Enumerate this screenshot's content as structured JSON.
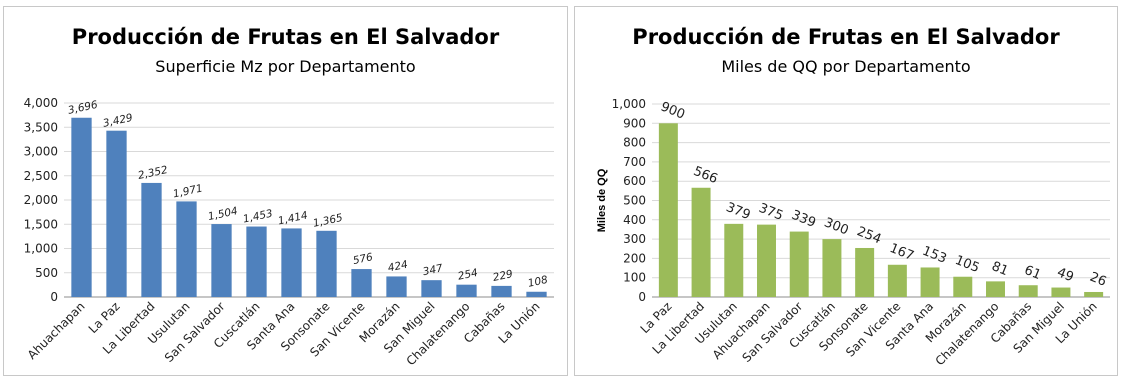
{
  "chart_data": [
    {
      "type": "bar",
      "title": "Producción de Frutas en El Salvador",
      "subtitle": "Superficie Mz por Departamento",
      "xlabel": "",
      "ylabel": "",
      "categories": [
        "Ahuachapan",
        "La Paz",
        "La Libertad",
        "Usulutan",
        "San Salvador",
        "Cuscatlán",
        "Santa Ana",
        "Sonsonate",
        "San Vicente",
        "Morazán",
        "San Miguel",
        "Chalatenango",
        "Cabañas",
        "La Unión"
      ],
      "values": [
        3696,
        3429,
        2352,
        1971,
        1504,
        1453,
        1414,
        1365,
        576,
        424,
        347,
        254,
        229,
        108
      ],
      "value_labels": [
        "3,696",
        "3,429",
        "2,352",
        "1,971",
        "1,504",
        "1,453",
        "1,414",
        "1,365",
        "576",
        "424",
        "347",
        "254",
        "229",
        "108"
      ],
      "ylim": [
        0,
        4000
      ],
      "yticks": [
        "0",
        "500",
        "1,000",
        "1,500",
        "2,000",
        "2,500",
        "3,000",
        "3,500",
        "4,000"
      ],
      "grid": true,
      "color": "#4f81bd"
    },
    {
      "type": "bar",
      "title": "Producción de Frutas en El Salvador",
      "subtitle": "Miles de QQ por Departamento",
      "xlabel": "",
      "ylabel": "Miles de QQ",
      "categories": [
        "La Paz",
        "La Libertad",
        "Usulutan",
        "Ahuachapan",
        "San Salvador",
        "Cuscatlán",
        "Sonsonate",
        "San Vicente",
        "Santa Ana",
        "Morazán",
        "Chalatenango",
        "Cabañas",
        "San Miguel",
        "La Unión"
      ],
      "values": [
        900,
        566,
        379,
        375,
        339,
        300,
        254,
        167,
        153,
        105,
        81,
        61,
        49,
        26
      ],
      "value_labels": [
        "900",
        "566",
        "379",
        "375",
        "339",
        "300",
        "254",
        "167",
        "153",
        "105",
        "81",
        "61",
        "49",
        "26"
      ],
      "ylim": [
        0,
        1000
      ],
      "yticks": [
        "0",
        "100",
        "200",
        "300",
        "400",
        "500",
        "600",
        "700",
        "800",
        "900",
        "1,000"
      ],
      "grid": true,
      "color": "#9bbb59"
    }
  ]
}
